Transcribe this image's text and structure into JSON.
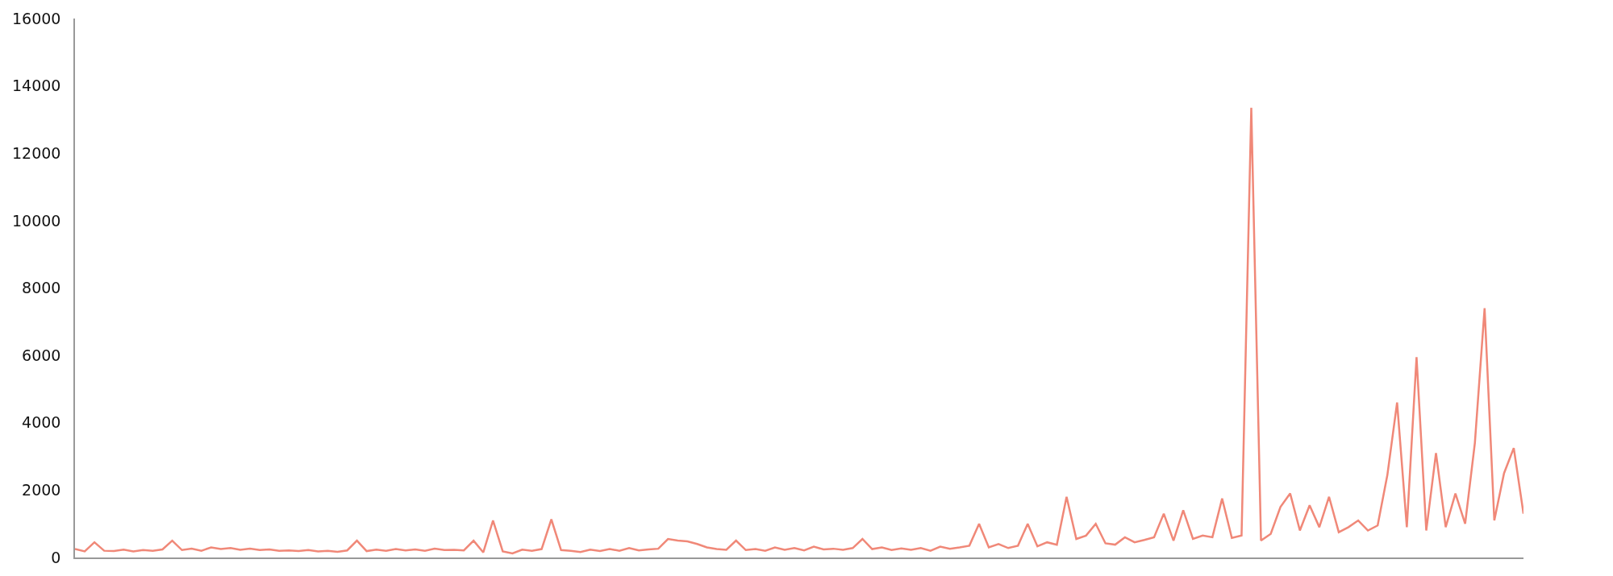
{
  "chart_data": {
    "type": "line",
    "categories": [
      null,
      null,
      null,
      null,
      null,
      null,
      null,
      null,
      null,
      null,
      null,
      null,
      null,
      null,
      null,
      null,
      null,
      null,
      null,
      null,
      null,
      null,
      null,
      null,
      null,
      null,
      null,
      null,
      null,
      null,
      null,
      null,
      null,
      null,
      null,
      null,
      null,
      null,
      null,
      null,
      null,
      null,
      null,
      null,
      null,
      null,
      null,
      null,
      null,
      null,
      null,
      null,
      null,
      null,
      null,
      null,
      null,
      null,
      null,
      null,
      null,
      null,
      null,
      null,
      null,
      null,
      null,
      null,
      null,
      null,
      null,
      null,
      null,
      null,
      null,
      null,
      null,
      null,
      null,
      null,
      null,
      null,
      null,
      null,
      null,
      null,
      null,
      null,
      null,
      null,
      null,
      null,
      null,
      null,
      null,
      null,
      null,
      null,
      null,
      null,
      null,
      null,
      null,
      null,
      null,
      null,
      null,
      null,
      null,
      null,
      null,
      null,
      null,
      null,
      null,
      null,
      null,
      null,
      null,
      null,
      null,
      null,
      null,
      null,
      null,
      null,
      null,
      null,
      null,
      null,
      null,
      null,
      null,
      null,
      null,
      null,
      null,
      null,
      null,
      null,
      null,
      null,
      null,
      null,
      null,
      null,
      null,
      null,
      null,
      null
    ],
    "series": [
      {
        "color": "#f08878",
        "values": [
          250,
          180,
          450,
          200,
          190,
          230,
          180,
          220,
          200,
          240,
          500,
          220,
          260,
          200,
          300,
          250,
          280,
          230,
          260,
          220,
          240,
          200,
          210,
          190,
          220,
          180,
          200,
          170,
          210,
          500,
          190,
          230,
          200,
          250,
          210,
          240,
          200,
          260,
          220,
          230,
          210,
          500,
          150,
          1100,
          180,
          120,
          230,
          200,
          250,
          1130,
          220,
          200,
          160,
          230,
          190,
          250,
          200,
          280,
          210,
          240,
          260,
          550,
          500,
          480,
          400,
          300,
          250,
          230,
          500,
          220,
          250,
          200,
          300,
          230,
          280,
          210,
          320,
          240,
          260,
          230,
          280,
          550,
          250,
          300,
          220,
          270,
          230,
          280,
          200,
          320,
          260,
          300,
          350,
          1000,
          300,
          400,
          280,
          350,
          1000,
          330,
          450,
          380,
          1800,
          550,
          650,
          1000,
          420,
          380,
          600,
          450,
          520,
          600,
          1300,
          500,
          1400,
          550,
          650,
          600,
          1750,
          580,
          650,
          13350,
          500,
          700,
          1500,
          1900,
          800,
          1550,
          900,
          1800,
          750,
          900,
          1100,
          800,
          950,
          2450,
          4600,
          900,
          5950,
          800,
          3100,
          900,
          1900,
          1000,
          3400,
          7400,
          1100,
          2500,
          3250,
          1300
        ]
      }
    ],
    "ylim": [
      0,
      16000
    ],
    "yticks": [
      0,
      2000,
      4000,
      6000,
      8000,
      10000,
      12000,
      14000,
      16000
    ],
    "marker": "none",
    "line_style": "solid"
  }
}
